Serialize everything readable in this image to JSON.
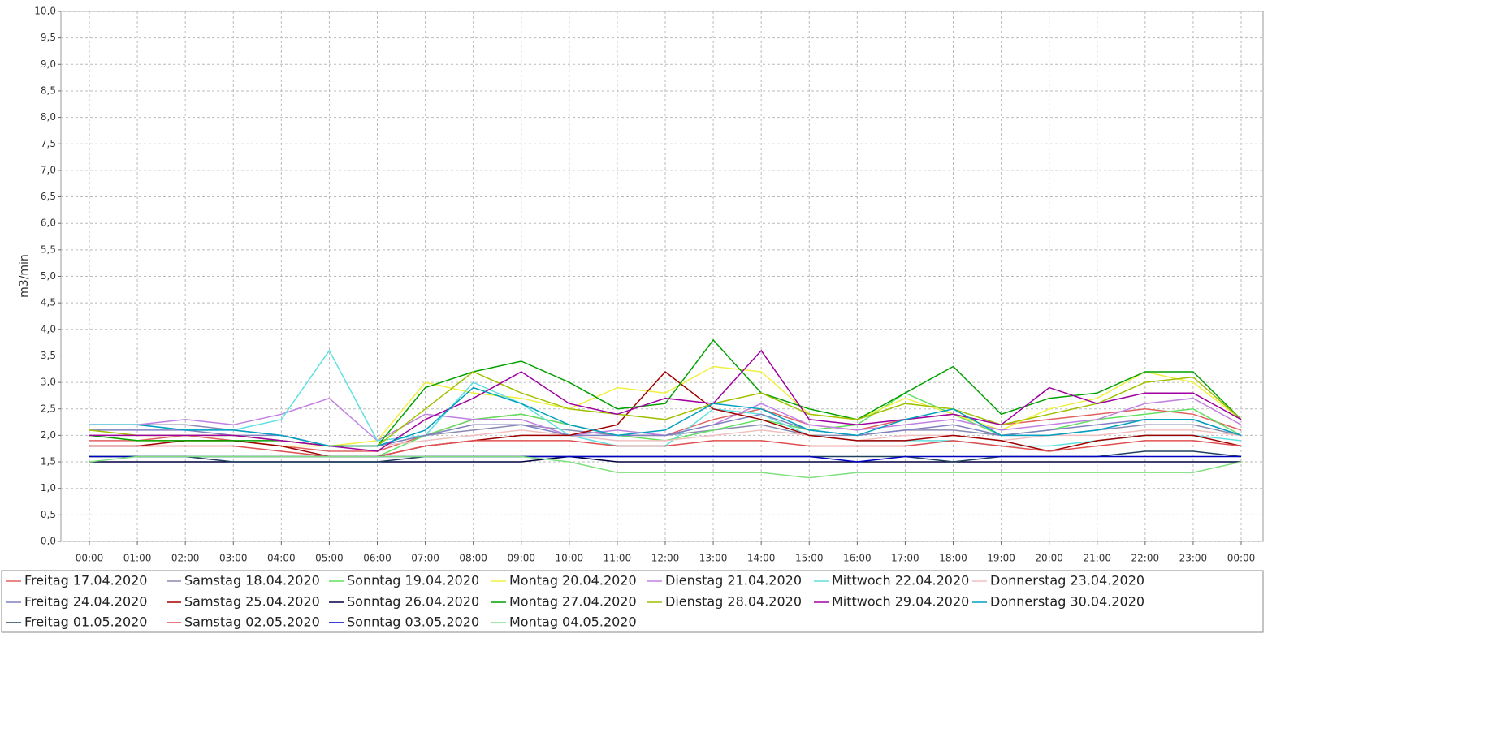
{
  "chart_data": {
    "type": "line",
    "y_label": "m3/min",
    "categories": [
      "00:00",
      "01:00",
      "02:00",
      "03:00",
      "04:00",
      "05:00",
      "06:00",
      "07:00",
      "08:00",
      "09:00",
      "10:00",
      "11:00",
      "12:00",
      "13:00",
      "14:00",
      "15:00",
      "16:00",
      "17:00",
      "18:00",
      "19:00",
      "20:00",
      "21:00",
      "22:00",
      "23:00",
      "00:00"
    ],
    "ylim": [
      0,
      10
    ],
    "yticks": [
      {
        "value": 0,
        "label": "0,0"
      },
      {
        "value": 0.5,
        "label": "0,5"
      },
      {
        "value": 1,
        "label": "1,0"
      },
      {
        "value": 1.5,
        "label": "1,5"
      },
      {
        "value": 2,
        "label": "2,0"
      },
      {
        "value": 2.5,
        "label": "2,5"
      },
      {
        "value": 3,
        "label": "3,0"
      },
      {
        "value": 3.5,
        "label": "3,5"
      },
      {
        "value": 4,
        "label": "4,0"
      },
      {
        "value": 4.5,
        "label": "4,5"
      },
      {
        "value": 5,
        "label": "5,0"
      },
      {
        "value": 5.5,
        "label": "5,5"
      },
      {
        "value": 6,
        "label": "6,0"
      },
      {
        "value": 6.5,
        "label": "6,5"
      },
      {
        "value": 7,
        "label": "7,0"
      },
      {
        "value": 7.5,
        "label": "7,5"
      },
      {
        "value": 8,
        "label": "8,0"
      },
      {
        "value": 8.5,
        "label": "8,5"
      },
      {
        "value": 9,
        "label": "9,0"
      },
      {
        "value": 9.5,
        "label": "9,5"
      },
      {
        "value": 10,
        "label": "10,0"
      }
    ],
    "grid": true,
    "series": [
      {
        "name": "Freitag 17.04.2020",
        "color": "#e06060",
        "values": [
          1.9,
          1.9,
          2.0,
          1.9,
          1.8,
          1.7,
          1.7,
          2.0,
          2.3,
          2.4,
          2.2,
          2.0,
          2.0,
          2.3,
          2.5,
          2.2,
          2.1,
          2.3,
          2.4,
          2.2,
          2.3,
          2.4,
          2.5,
          2.4,
          2.1
        ]
      },
      {
        "name": "Samstag 18.04.2020",
        "color": "#8a8ab0",
        "values": [
          2.2,
          2.2,
          2.2,
          2.1,
          2.0,
          1.8,
          1.8,
          2.0,
          2.1,
          2.2,
          2.1,
          2.0,
          2.0,
          2.1,
          2.2,
          2.0,
          2.0,
          2.1,
          2.1,
          2.0,
          2.0,
          2.1,
          2.2,
          2.2,
          2.0
        ]
      },
      {
        "name": "Sonntag 19.04.2020",
        "color": "#60e060",
        "values": [
          1.6,
          1.6,
          1.6,
          1.6,
          1.6,
          1.6,
          1.6,
          2.0,
          2.3,
          2.4,
          2.2,
          2.0,
          1.9,
          2.1,
          2.3,
          2.1,
          2.2,
          2.8,
          2.4,
          2.0,
          2.1,
          2.3,
          2.4,
          2.5,
          2.0
        ]
      },
      {
        "name": "Montag 20.04.2020",
        "color": "#f0f040",
        "values": [
          2.0,
          1.9,
          1.9,
          1.9,
          1.8,
          1.8,
          1.9,
          3.0,
          2.8,
          2.7,
          2.5,
          2.9,
          2.8,
          3.3,
          3.2,
          2.4,
          2.3,
          2.7,
          2.4,
          2.1,
          2.5,
          2.7,
          3.2,
          3.0,
          2.3
        ]
      },
      {
        "name": "Dienstag 21.04.2020",
        "color": "#c080e0",
        "values": [
          2.2,
          2.2,
          2.3,
          2.2,
          2.4,
          2.7,
          1.9,
          2.4,
          2.3,
          2.3,
          2.0,
          2.1,
          2.0,
          2.2,
          2.6,
          2.2,
          2.1,
          2.2,
          2.3,
          2.1,
          2.2,
          2.3,
          2.6,
          2.7,
          2.2
        ]
      },
      {
        "name": "Mittwoch 22.04.2020",
        "color": "#60e0e0",
        "values": [
          2.2,
          2.2,
          2.1,
          2.1,
          2.3,
          3.6,
          1.9,
          2.0,
          3.0,
          2.6,
          2.0,
          1.8,
          1.8,
          2.5,
          2.4,
          2.0,
          1.9,
          1.9,
          1.9,
          1.8,
          1.8,
          1.9,
          2.0,
          2.0,
          1.9
        ]
      },
      {
        "name": "Donnerstag 23.04.2020",
        "color": "#f0c0c0",
        "values": [
          2.0,
          2.0,
          2.0,
          2.0,
          1.9,
          1.8,
          1.8,
          1.9,
          2.0,
          2.1,
          2.0,
          1.9,
          1.9,
          2.0,
          2.1,
          2.0,
          1.9,
          2.0,
          2.0,
          1.9,
          2.0,
          2.0,
          2.1,
          2.1,
          2.0
        ]
      },
      {
        "name": "Freitag 24.04.2020",
        "color": "#8080c0",
        "values": [
          2.1,
          2.1,
          2.1,
          2.0,
          2.0,
          1.8,
          1.8,
          2.0,
          2.2,
          2.2,
          2.0,
          2.0,
          2.0,
          2.2,
          2.4,
          2.1,
          2.0,
          2.1,
          2.2,
          2.0,
          2.1,
          2.2,
          2.3,
          2.3,
          2.0
        ]
      },
      {
        "name": "Samstag 25.04.2020",
        "color": "#a00000",
        "values": [
          1.8,
          1.8,
          1.9,
          1.9,
          1.8,
          1.6,
          1.6,
          1.8,
          1.9,
          2.0,
          2.0,
          2.2,
          3.2,
          2.5,
          2.3,
          2.0,
          1.9,
          1.9,
          2.0,
          1.9,
          1.7,
          1.9,
          2.0,
          2.0,
          1.8
        ]
      },
      {
        "name": "Sonntag 26.04.2020",
        "color": "#000040",
        "values": [
          1.5,
          1.5,
          1.5,
          1.5,
          1.5,
          1.5,
          1.5,
          1.5,
          1.5,
          1.5,
          1.6,
          1.5,
          1.5,
          1.5,
          1.5,
          1.5,
          1.5,
          1.5,
          1.5,
          1.5,
          1.5,
          1.5,
          1.5,
          1.5,
          1.5
        ]
      },
      {
        "name": "Montag 27.04.2020",
        "color": "#00a000",
        "values": [
          2.0,
          1.9,
          1.9,
          1.9,
          1.9,
          1.8,
          1.8,
          2.9,
          3.2,
          3.4,
          3.0,
          2.5,
          2.6,
          3.8,
          2.8,
          2.5,
          2.3,
          2.8,
          3.3,
          2.4,
          2.7,
          2.8,
          3.2,
          3.2,
          2.3
        ]
      },
      {
        "name": "Dienstag 28.04.2020",
        "color": "#a0c000",
        "values": [
          2.1,
          2.0,
          2.0,
          2.0,
          1.9,
          1.8,
          1.8,
          2.5,
          3.2,
          2.8,
          2.5,
          2.4,
          2.3,
          2.6,
          2.8,
          2.4,
          2.3,
          2.6,
          2.5,
          2.2,
          2.4,
          2.6,
          3.0,
          3.1,
          2.3
        ]
      },
      {
        "name": "Mittwoch 29.04.2020",
        "color": "#a000a0",
        "values": [
          2.0,
          2.0,
          2.0,
          2.0,
          1.9,
          1.8,
          1.7,
          2.3,
          2.7,
          3.2,
          2.6,
          2.4,
          2.7,
          2.6,
          3.6,
          2.3,
          2.2,
          2.3,
          2.4,
          2.2,
          2.9,
          2.6,
          2.8,
          2.8,
          2.3
        ]
      },
      {
        "name": "Donnerstag 30.04.2020",
        "color": "#00a0c0",
        "values": [
          2.2,
          2.2,
          2.1,
          2.1,
          2.0,
          1.8,
          1.8,
          2.1,
          2.9,
          2.6,
          2.2,
          2.0,
          2.1,
          2.6,
          2.5,
          2.1,
          2.0,
          2.3,
          2.5,
          2.0,
          2.0,
          2.1,
          2.3,
          2.3,
          2.0
        ]
      },
      {
        "name": "Freitag 01.05.2020",
        "color": "#204060",
        "values": [
          1.6,
          1.6,
          1.6,
          1.5,
          1.5,
          1.5,
          1.5,
          1.6,
          1.6,
          1.6,
          1.6,
          1.6,
          1.6,
          1.6,
          1.6,
          1.6,
          1.6,
          1.6,
          1.5,
          1.6,
          1.6,
          1.6,
          1.7,
          1.7,
          1.6
        ]
      },
      {
        "name": "Samstag 02.05.2020",
        "color": "#e05050",
        "values": [
          1.8,
          1.8,
          1.8,
          1.8,
          1.7,
          1.6,
          1.6,
          1.8,
          1.9,
          1.9,
          1.9,
          1.8,
          1.8,
          1.9,
          1.9,
          1.8,
          1.8,
          1.8,
          1.9,
          1.8,
          1.7,
          1.8,
          1.9,
          1.9,
          1.8
        ]
      },
      {
        "name": "Sonntag 03.05.2020",
        "color": "#0000c0",
        "values": [
          1.6,
          1.6,
          1.6,
          1.6,
          1.6,
          1.6,
          1.6,
          1.6,
          1.6,
          1.6,
          1.6,
          1.6,
          1.6,
          1.6,
          1.6,
          1.6,
          1.5,
          1.6,
          1.6,
          1.6,
          1.6,
          1.6,
          1.6,
          1.6,
          1.6
        ]
      },
      {
        "name": "Montag 04.05.2020",
        "color": "#80e080",
        "values": [
          1.5,
          1.6,
          1.6,
          1.6,
          1.6,
          1.6,
          1.6,
          1.6,
          1.6,
          1.6,
          1.5,
          1.3,
          1.3,
          1.3,
          1.3,
          1.2,
          1.3,
          1.3,
          1.3,
          1.3,
          1.3,
          1.3,
          1.3,
          1.3,
          1.5
        ]
      }
    ]
  }
}
